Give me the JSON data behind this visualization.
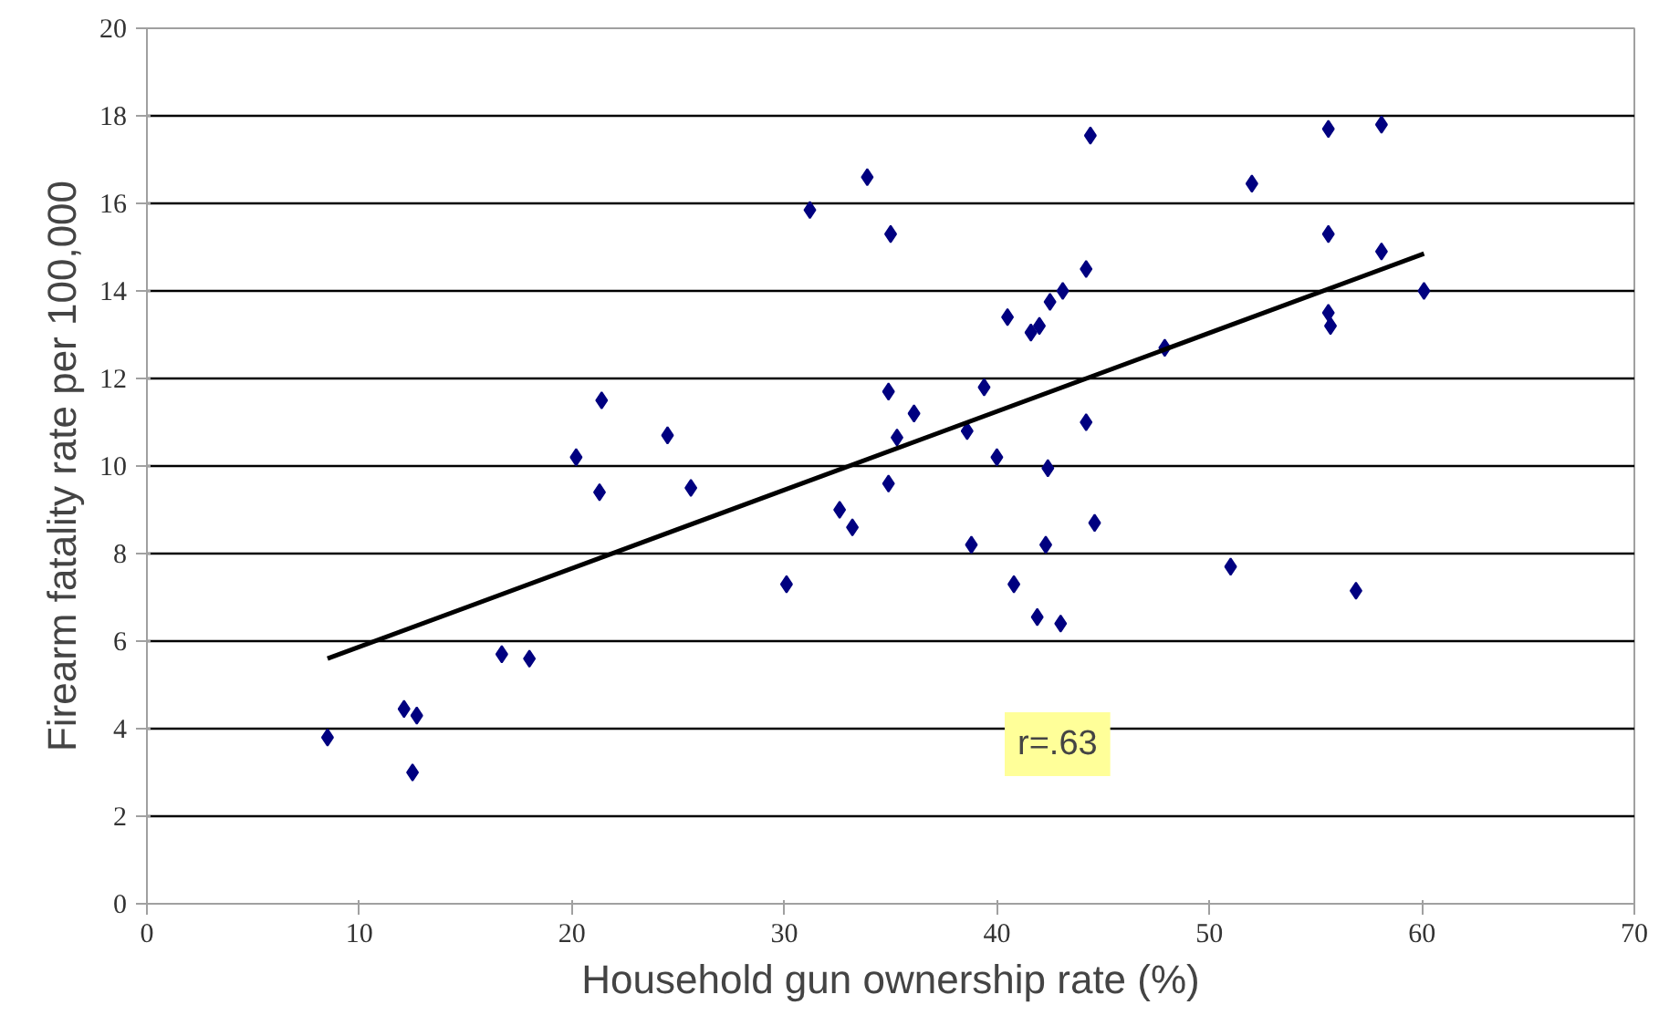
{
  "chart_data": {
    "type": "scatter",
    "xlabel": "Household gun ownership rate (%)",
    "ylabel": "Firearm fatality rate per 100,000",
    "x": [
      8.5,
      12.1,
      12.7,
      12.5,
      16.7,
      18.0,
      20.2,
      21.3,
      21.4,
      24.5,
      25.6,
      30.1,
      31.2,
      33.9,
      35.0,
      32.6,
      33.2,
      34.9,
      34.9,
      35.3,
      36.1,
      38.6,
      38.8,
      39.4,
      40.0,
      40.5,
      40.8,
      41.6,
      42.0,
      41.9,
      42.3,
      42.4,
      42.5,
      43.0,
      43.1,
      44.2,
      44.2,
      44.4,
      44.6,
      47.9,
      51.0,
      52.0,
      55.6,
      55.6,
      55.6,
      55.7,
      56.9,
      58.1,
      58.1,
      60.1
    ],
    "series": [
      {
        "color": "#000080",
        "marker": "diamond",
        "values": [
          3.8,
          4.45,
          4.3,
          3.0,
          5.7,
          5.6,
          10.2,
          9.4,
          11.5,
          10.7,
          9.5,
          7.3,
          15.85,
          16.6,
          15.3,
          9.0,
          8.6,
          11.7,
          9.6,
          10.65,
          11.2,
          10.8,
          8.2,
          11.8,
          10.2,
          13.4,
          7.3,
          13.05,
          13.2,
          6.55,
          8.2,
          9.95,
          13.75,
          6.4,
          14.0,
          11.0,
          14.5,
          17.55,
          8.7,
          12.7,
          7.7,
          16.45,
          17.7,
          15.3,
          13.5,
          13.2,
          7.15,
          17.8,
          14.9,
          14.0
        ]
      },
      {
        "type": "line",
        "color": "#000000",
        "x": [
          8.5,
          60.1
        ],
        "values": [
          5.6,
          14.85
        ]
      }
    ],
    "xlim": [
      0,
      70
    ],
    "xticks": [
      0,
      10,
      20,
      30,
      40,
      50,
      60,
      70
    ],
    "ylim": [
      0,
      20
    ],
    "yticks": [
      0,
      2,
      4,
      6,
      8,
      10,
      12,
      14,
      16,
      18,
      20
    ],
    "grid": "y",
    "annotations": [
      "r=.63"
    ]
  }
}
